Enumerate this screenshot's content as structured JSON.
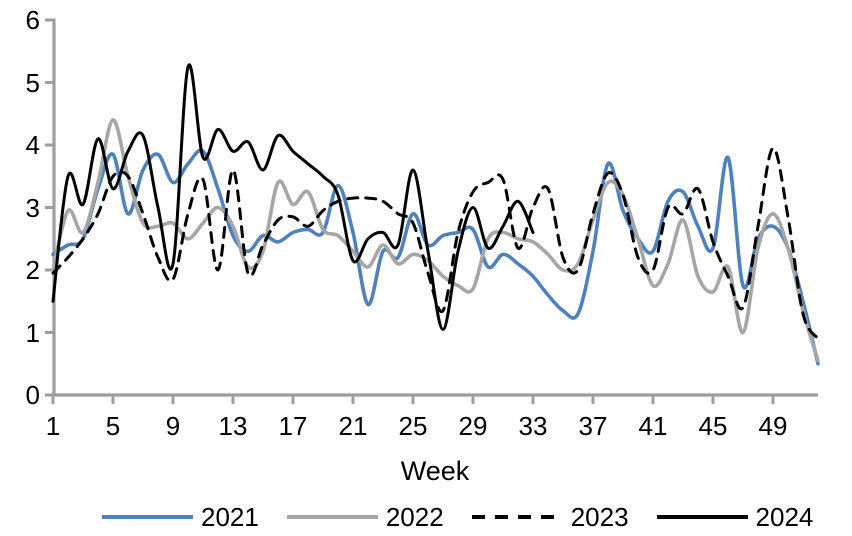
{
  "chart_data": {
    "type": "line",
    "title": "",
    "xlabel": "Week",
    "ylabel": "",
    "xlim": [
      1,
      52
    ],
    "ylim": [
      0,
      6
    ],
    "grid": false,
    "legend_position": "bottom",
    "axis_color": "#9e9e9e",
    "text_color": "#000000",
    "x_ticks": [
      1,
      5,
      9,
      13,
      17,
      21,
      25,
      29,
      33,
      37,
      41,
      45,
      49
    ],
    "y_ticks": [
      0,
      1,
      2,
      3,
      4,
      5,
      6
    ],
    "x_weeks": "1-52",
    "series": [
      {
        "name": "2021",
        "color": "#4F81BD",
        "style": "solid",
        "start_week": 1,
        "values": [
          2.25,
          2.4,
          2.5,
          3.3,
          3.85,
          2.9,
          3.6,
          3.85,
          3.4,
          3.7,
          3.9,
          3.3,
          2.55,
          2.3,
          2.55,
          2.45,
          2.6,
          2.65,
          2.6,
          3.35,
          2.6,
          1.45,
          2.3,
          2.2,
          2.9,
          2.4,
          2.55,
          2.6,
          2.65,
          2.05,
          2.25,
          2.1,
          1.9,
          1.6,
          1.35,
          1.3,
          2.3,
          3.7,
          2.95,
          2.5,
          2.3,
          3.1,
          3.25,
          2.7,
          2.35,
          3.8,
          1.75,
          2.5,
          2.7,
          2.35,
          1.5,
          0.5
        ]
      },
      {
        "name": "2022",
        "color": "#A6A6A6",
        "style": "solid",
        "start_week": 1,
        "values": [
          2.0,
          2.95,
          2.6,
          3.4,
          4.4,
          3.5,
          2.75,
          2.7,
          2.75,
          2.5,
          2.75,
          3.0,
          2.7,
          2.05,
          2.3,
          3.4,
          3.05,
          3.25,
          2.65,
          2.55,
          2.3,
          2.05,
          2.4,
          2.1,
          2.25,
          2.15,
          1.9,
          1.75,
          1.7,
          2.5,
          2.6,
          2.5,
          2.45,
          2.25,
          2.0,
          2.1,
          2.8,
          3.4,
          3.2,
          2.5,
          1.75,
          2.1,
          2.8,
          1.9,
          1.65,
          2.05,
          1.0,
          2.35,
          2.9,
          2.35,
          1.35,
          0.55
        ]
      },
      {
        "name": "2023",
        "color": "#000000",
        "style": "dashed",
        "start_week": 1,
        "values": [
          1.95,
          2.2,
          2.5,
          2.9,
          3.5,
          3.5,
          2.9,
          2.2,
          1.85,
          2.9,
          3.45,
          2.0,
          3.6,
          1.95,
          2.4,
          2.8,
          2.85,
          2.7,
          2.95,
          3.1,
          3.15,
          3.15,
          3.1,
          2.9,
          2.75,
          1.95,
          1.35,
          2.6,
          3.25,
          3.4,
          3.45,
          2.35,
          3.0,
          3.3,
          2.2,
          2.0,
          2.9,
          3.55,
          3.2,
          2.2,
          2.0,
          3.0,
          2.9,
          3.3,
          2.45,
          1.9,
          1.4,
          2.7,
          3.95,
          2.85,
          1.3,
          0.9
        ]
      },
      {
        "name": "2024",
        "color": "#000000",
        "style": "solid",
        "start_week": 1,
        "values": [
          1.5,
          3.5,
          3.05,
          4.1,
          3.3,
          3.9,
          4.15,
          3.0,
          2.1,
          5.25,
          3.8,
          4.25,
          3.9,
          4.05,
          3.6,
          4.15,
          3.9,
          3.7,
          3.5,
          3.2,
          2.15,
          2.5,
          2.6,
          2.4,
          3.6,
          2.3,
          1.05,
          2.3,
          3.0,
          2.35,
          2.7,
          3.1,
          2.6
        ]
      }
    ]
  },
  "legend": {
    "items": [
      {
        "label": "2021"
      },
      {
        "label": "2022"
      },
      {
        "label": "2023"
      },
      {
        "label": "2024"
      }
    ]
  }
}
